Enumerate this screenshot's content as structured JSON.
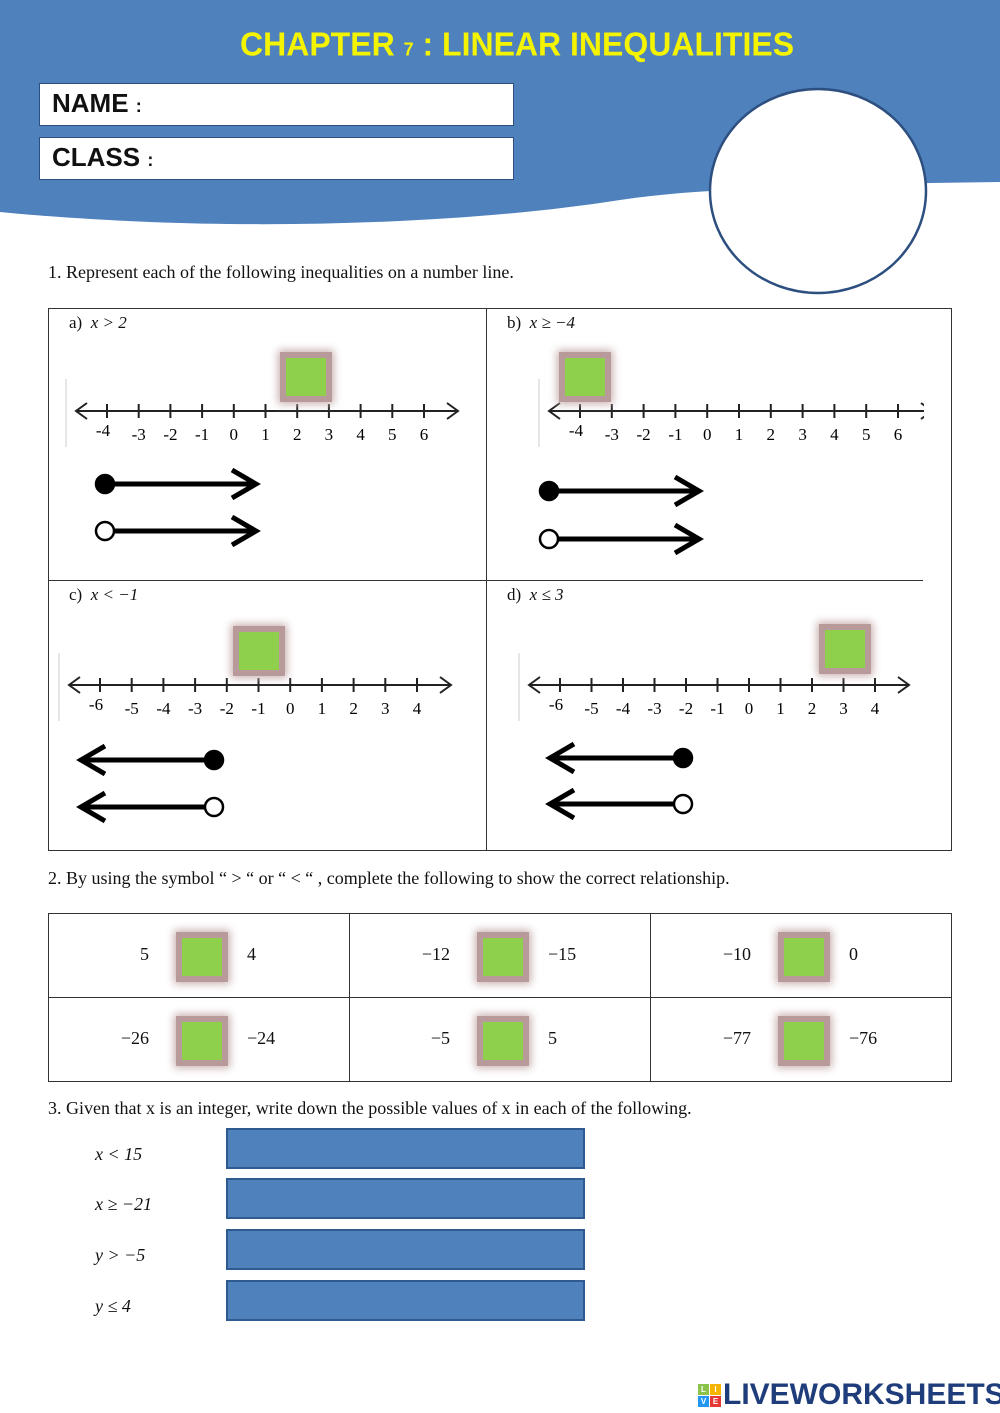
{
  "header": {
    "title_a": "CHAPTER ",
    "title_num": "7",
    "title_b": " : LINEAR INEQUALITIES",
    "name_label": "NAME",
    "class_label": "CLASS",
    "colon": ":",
    "colors": {
      "banner": "#4f81bd",
      "title": "#f4f400"
    }
  },
  "q1": {
    "text": "1.   Represent each of the following inequalities on a number line.",
    "panels": [
      {
        "label": "a)",
        "ineq": "x > 2",
        "ticks": [
          "-4",
          "-3",
          "-2",
          "-1",
          "0",
          "1",
          "2",
          "3",
          "4",
          "5",
          "6"
        ]
      },
      {
        "label": "b)",
        "ineq": "x ≥ −4",
        "ticks": [
          "-4",
          "-3",
          "-2",
          "-1",
          "0",
          "1",
          "2",
          "3",
          "4",
          "5",
          "6"
        ]
      },
      {
        "label": "c)",
        "ineq": "x < −1",
        "ticks": [
          "-6",
          "-5",
          "-4",
          "-3",
          "-2",
          "-1",
          "0",
          "1",
          "2",
          "3",
          "4"
        ]
      },
      {
        "label": "d)",
        "ineq": "x ≤ 3",
        "ticks": [
          "-6",
          "-5",
          "-4",
          "-3",
          "-2",
          "-1",
          "0",
          "1",
          "2",
          "3",
          "4"
        ]
      }
    ]
  },
  "q2": {
    "text": "2.   By using the symbol “ > “ or “ < “ , complete the following to show the correct relationship.",
    "rows": [
      [
        [
          "5",
          "4"
        ],
        [
          "−12",
          "−15"
        ],
        [
          "−10",
          "0"
        ]
      ],
      [
        [
          "−26",
          "−24"
        ],
        [
          "−5",
          "5"
        ],
        [
          "−77",
          "−76"
        ]
      ]
    ]
  },
  "q3": {
    "text": "3.   Given that x is an integer, write down the possible values of x in each of the following.",
    "items": [
      "x < 15",
      "x ≥ −21",
      "y > −5",
      "y ≤ 4"
    ]
  },
  "footer": {
    "logo": "LIVEWORKSHEETS",
    "logo_tiles": [
      "L",
      "I",
      "V",
      "E"
    ]
  }
}
